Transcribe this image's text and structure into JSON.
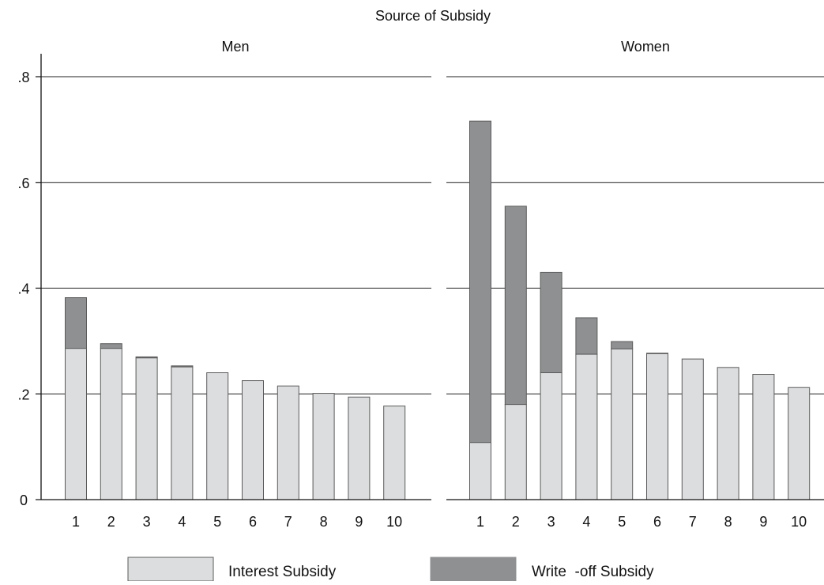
{
  "chart_data": {
    "type": "bar",
    "stacked": true,
    "title": "Source of Subsidy",
    "categories": [
      "1",
      "2",
      "3",
      "4",
      "5",
      "6",
      "7",
      "8",
      "9",
      "10"
    ],
    "ylim": [
      0,
      0.8
    ],
    "yticks": [
      0,
      0.2,
      0.4,
      0.6,
      0.8
    ],
    "ytick_labels": [
      "0",
      ".2",
      ".4",
      ".6",
      ".8"
    ],
    "grid": true,
    "legend_position": "bottom",
    "colors": {
      "interest": "#dcdddf",
      "writeoff": "#8f9092",
      "bar_edge": "#5a5a5a",
      "axis": "#111111"
    },
    "series_names": [
      "Interest Subsidy",
      "Write  -off Subsidy"
    ],
    "panels": [
      {
        "label": "Men",
        "interest": [
          0.286,
          0.286,
          0.268,
          0.251,
          0.24,
          0.225,
          0.215,
          0.201,
          0.194,
          0.177
        ],
        "total": [
          0.382,
          0.295,
          0.27,
          0.253,
          0.24,
          0.225,
          0.215,
          0.201,
          0.194,
          0.177
        ]
      },
      {
        "label": "Women",
        "interest": [
          0.108,
          0.18,
          0.24,
          0.275,
          0.285,
          0.276,
          0.266,
          0.25,
          0.237,
          0.212
        ],
        "total": [
          0.716,
          0.555,
          0.43,
          0.344,
          0.299,
          0.277,
          0.266,
          0.25,
          0.237,
          0.212
        ]
      }
    ]
  }
}
